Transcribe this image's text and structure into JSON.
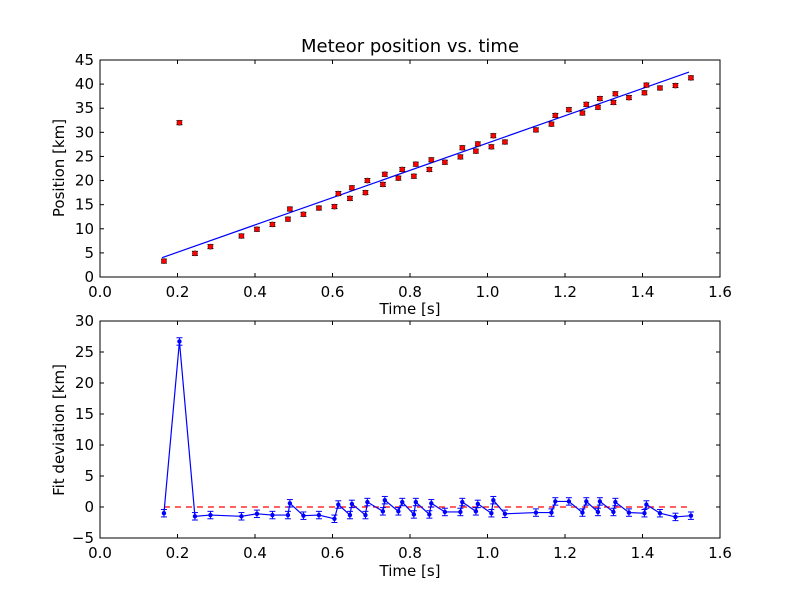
{
  "chart_data": [
    {
      "type": "scatter",
      "title": "Meteor position vs. time",
      "xlabel": "Time [s]",
      "ylabel": "Position [km]",
      "xlim": [
        0.0,
        1.6
      ],
      "ylim": [
        0,
        45
      ],
      "xticks": [
        "0.0",
        "0.2",
        "0.4",
        "0.6",
        "0.8",
        "1.0",
        "1.2",
        "1.4",
        "1.6"
      ],
      "yticks": [
        "0",
        "5",
        "10",
        "15",
        "20",
        "25",
        "30",
        "35",
        "40",
        "45"
      ],
      "grid": false,
      "marker_color": "#ff0000",
      "line_color": "#0000ff",
      "error_bar": 0.3,
      "fit_line": {
        "x": [
          0.16,
          1.52
        ],
        "y": [
          4.0,
          42.5
        ]
      },
      "points": {
        "x": [
          0.165,
          0.205,
          0.245,
          0.285,
          0.365,
          0.405,
          0.445,
          0.485,
          0.49,
          0.525,
          0.565,
          0.605,
          0.615,
          0.645,
          0.65,
          0.685,
          0.69,
          0.73,
          0.735,
          0.77,
          0.78,
          0.81,
          0.815,
          0.85,
          0.855,
          0.89,
          0.93,
          0.935,
          0.97,
          0.975,
          1.01,
          1.015,
          1.045,
          1.125,
          1.165,
          1.175,
          1.21,
          1.245,
          1.255,
          1.285,
          1.29,
          1.325,
          1.33,
          1.365,
          1.405,
          1.41,
          1.445,
          1.485,
          1.525
        ],
        "y": [
          3.3,
          32.0,
          4.9,
          6.3,
          8.5,
          9.9,
          10.9,
          12.0,
          14.1,
          13.0,
          14.3,
          14.6,
          17.3,
          16.3,
          18.5,
          17.5,
          20.0,
          19.2,
          21.3,
          20.5,
          22.3,
          20.9,
          23.4,
          22.3,
          24.3,
          23.8,
          24.9,
          26.8,
          26.1,
          27.6,
          27.0,
          29.3,
          28.0,
          30.5,
          31.7,
          33.5,
          34.7,
          34.0,
          35.8,
          35.2,
          37.0,
          36.2,
          38.0,
          37.2,
          38.2,
          39.8,
          39.2,
          39.7,
          41.3
        ]
      }
    },
    {
      "type": "line",
      "title": "",
      "xlabel": "Time [s]",
      "ylabel": "Fit deviation [km]",
      "xlim": [
        0.0,
        1.6
      ],
      "ylim": [
        -5,
        30
      ],
      "xticks": [
        "0.0",
        "0.2",
        "0.4",
        "0.6",
        "0.8",
        "1.0",
        "1.2",
        "1.4",
        "1.6"
      ],
      "yticks": [
        "−5",
        "0",
        "5",
        "10",
        "15",
        "20",
        "25",
        "30"
      ],
      "grid": false,
      "line_color": "#0000ff",
      "reference_line": {
        "y": 0,
        "color": "#ff0000",
        "style": "dashed",
        "x": [
          0.165,
          1.525
        ]
      },
      "error_bar": 0.6,
      "x": [
        0.165,
        0.205,
        0.245,
        0.285,
        0.365,
        0.405,
        0.445,
        0.485,
        0.49,
        0.525,
        0.565,
        0.605,
        0.615,
        0.645,
        0.65,
        0.685,
        0.69,
        0.73,
        0.735,
        0.77,
        0.78,
        0.81,
        0.815,
        0.85,
        0.855,
        0.89,
        0.93,
        0.935,
        0.97,
        0.975,
        1.01,
        1.015,
        1.045,
        1.125,
        1.165,
        1.175,
        1.21,
        1.245,
        1.255,
        1.285,
        1.29,
        1.325,
        1.33,
        1.365,
        1.405,
        1.41,
        1.445,
        1.485,
        1.525
      ],
      "y": [
        -1.0,
        26.7,
        -1.5,
        -1.3,
        -1.5,
        -1.1,
        -1.3,
        -1.3,
        0.6,
        -1.4,
        -1.3,
        -1.9,
        0.4,
        -1.3,
        0.5,
        -1.3,
        0.8,
        -0.7,
        1.1,
        -0.7,
        0.8,
        -1.2,
        0.8,
        -1.2,
        0.6,
        -0.8,
        -0.8,
        0.8,
        -0.7,
        0.5,
        -1.0,
        1.1,
        -1.1,
        -0.9,
        -0.9,
        0.9,
        0.9,
        -0.9,
        0.9,
        -0.8,
        0.9,
        -0.8,
        0.8,
        -0.9,
        -1.0,
        0.4,
        -1.0,
        -1.6,
        -1.4
      ]
    }
  ]
}
